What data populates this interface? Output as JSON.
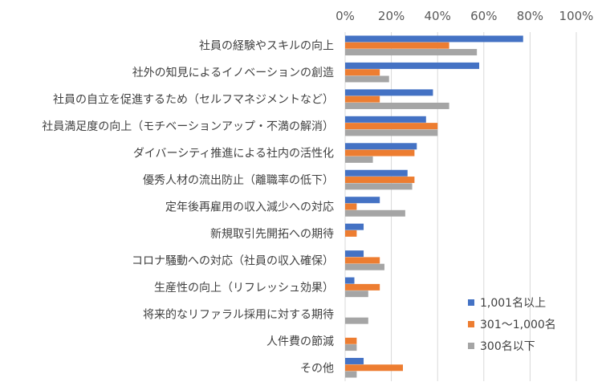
{
  "chart_data": {
    "type": "bar",
    "orientation": "horizontal",
    "title": "",
    "xlim": [
      0,
      100
    ],
    "x_ticks": [
      "0%",
      "20%",
      "40%",
      "60%",
      "80%",
      "100%"
    ],
    "grid": true,
    "legend_position": "bottom-right",
    "categories": [
      "社員の経験やスキルの向上",
      "社外の知見によるイノベーションの創造",
      "社員の自立を促進するため（セルフマネジメントなど）",
      "社員満足度の向上（モチベーションアップ・不満の解消）",
      "ダイバーシティ推進による社内の活性化",
      "優秀人材の流出防止（離職率の低下）",
      "定年後再雇用の収入減少への対応",
      "新規取引先開拓への期待",
      "コロナ騒動への対応（社員の収入確保）",
      "生産性の向上（リフレッシュ効果）",
      "将来的なリファラル採用に対する期待",
      "人件費の節減",
      "その他"
    ],
    "series": [
      {
        "name": "1,001名以上",
        "color": "#4472C4",
        "values": [
          77,
          58,
          38,
          35,
          31,
          27,
          15,
          8,
          8,
          4,
          0,
          0,
          8
        ]
      },
      {
        "name": "301～1,000名",
        "color": "#ED7D31",
        "values": [
          45,
          15,
          15,
          40,
          30,
          30,
          5,
          5,
          15,
          15,
          0,
          5,
          25
        ]
      },
      {
        "name": "300名以下",
        "color": "#A5A5A5",
        "values": [
          57,
          19,
          45,
          40,
          12,
          29,
          26,
          0,
          17,
          10,
          10,
          5,
          5
        ]
      }
    ]
  }
}
